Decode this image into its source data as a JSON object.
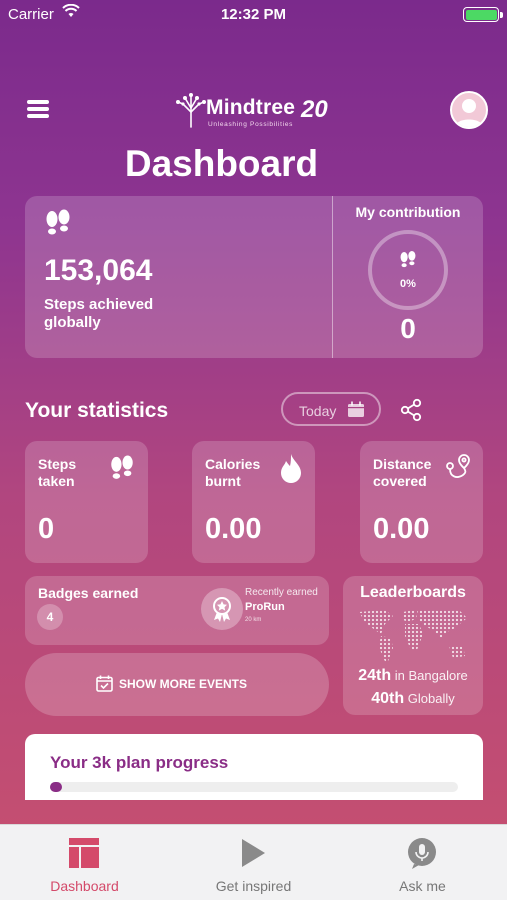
{
  "status_bar": {
    "carrier": "Carrier",
    "time": "12:32 PM"
  },
  "header": {
    "logo_name": "Mindtree",
    "logo_tagline": "Unleashing Possibilities",
    "logo_badge": "20",
    "title": "Dashboard"
  },
  "global": {
    "steps": "153,064",
    "steps_label": "Steps achieved globally",
    "contribution_title": "My contribution",
    "contribution_percent": "0%",
    "contribution_value": "0"
  },
  "statistics": {
    "title": "Your statistics",
    "period": "Today",
    "cards": [
      {
        "label": "Steps taken",
        "value": "0"
      },
      {
        "label": "Calories burnt",
        "value": "0.00"
      },
      {
        "label": "Distance covered",
        "value": "0.00"
      }
    ]
  },
  "badges": {
    "label": "Badges earned",
    "count": "4",
    "recent_label": "Recently earned",
    "recent_name": "ProRun",
    "recent_distance": "20 km"
  },
  "events_button": "SHOW MORE EVENTS",
  "leaderboards": {
    "title": "Leaderboards",
    "local_rank": "24th",
    "local_scope": " in Bangalore",
    "global_rank": "40th",
    "global_scope": " Globally"
  },
  "plan": {
    "label": "Your 3k plan progress",
    "progress": 0.03
  },
  "tabbar": {
    "tabs": [
      {
        "label": "Dashboard",
        "active": true
      },
      {
        "label": "Get inspired",
        "active": false
      },
      {
        "label": "Ask me",
        "active": false
      }
    ]
  },
  "colors": {
    "accent": "#d44a6a",
    "brand_purple": "#8a2d86",
    "battery": "#4cd964"
  }
}
